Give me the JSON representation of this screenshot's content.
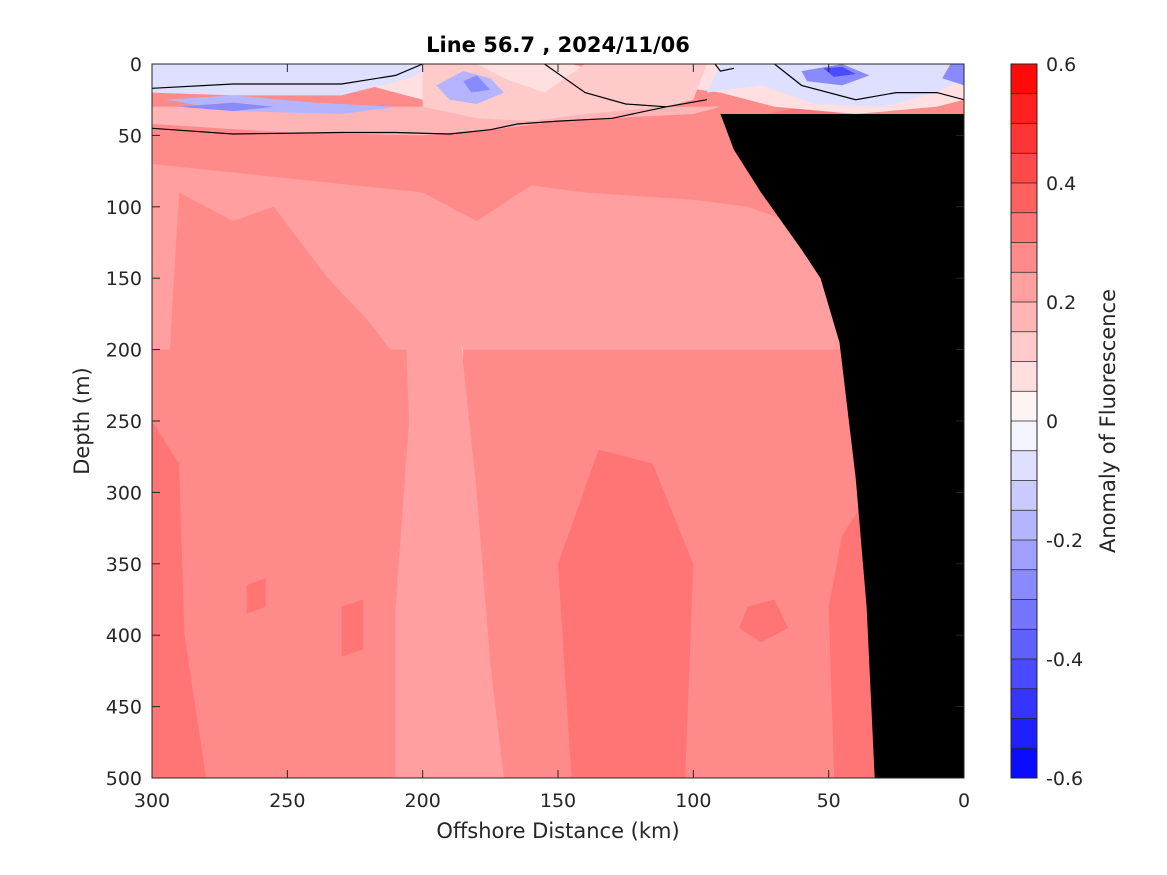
{
  "chart_data": {
    "type": "heatmap",
    "title": "Line 56.7 , 2024/11/06",
    "xlabel": "Offshore Distance (km)",
    "ylabel": "Depth (m)",
    "colorbar_label": "Anomaly of Fluorescence",
    "xlim": [
      300,
      0
    ],
    "ylim": [
      500,
      0
    ],
    "x_ticks": [
      "300",
      "250",
      "200",
      "150",
      "100",
      "50",
      "0"
    ],
    "y_ticks": [
      "0",
      "50",
      "100",
      "150",
      "200",
      "250",
      "300",
      "350",
      "400",
      "450",
      "500"
    ],
    "colorbar_range": [
      -0.6,
      0.6
    ],
    "colorbar_ticks": [
      "0.6",
      "0.4",
      "0.2",
      "0",
      "-0.2",
      "-0.4",
      "-0.6"
    ],
    "colorbar_levels": 24,
    "grid": false,
    "bathymetry_color": "#000000",
    "zero_contour_color": "#000000",
    "regions": [
      {
        "value": 0.25,
        "points": [
          [
            300,
            0
          ],
          [
            0,
            0
          ],
          [
            0,
            500
          ],
          [
            300,
            500
          ]
        ]
      },
      {
        "value": 0.225,
        "points": [
          [
            300,
            70
          ],
          [
            250,
            80
          ],
          [
            200,
            90
          ],
          [
            180,
            110
          ],
          [
            160,
            85
          ],
          [
            140,
            90
          ],
          [
            100,
            95
          ],
          [
            80,
            100
          ],
          [
            50,
            120
          ],
          [
            20,
            140
          ],
          [
            10,
            160
          ],
          [
            3,
            200
          ],
          [
            300,
            200
          ]
        ]
      },
      {
        "value": 0.25,
        "points": [
          [
            290,
            90
          ],
          [
            270,
            110
          ],
          [
            255,
            100
          ],
          [
            235,
            150
          ],
          [
            220,
            180
          ],
          [
            200,
            230
          ],
          [
            190,
            360
          ],
          [
            185,
            500
          ],
          [
            270,
            500
          ],
          [
            285,
            400
          ],
          [
            295,
            250
          ]
        ]
      },
      {
        "value": 0.15,
        "points": [
          [
            200,
            180
          ],
          [
            193,
            160
          ],
          [
            185,
            200
          ],
          [
            186,
            250
          ],
          [
            195,
            285
          ],
          [
            205,
            240
          ]
        ]
      },
      {
        "value": 0.2,
        "points": [
          [
            208,
            110
          ],
          [
            200,
            100
          ],
          [
            190,
            120
          ],
          [
            180,
            300
          ],
          [
            175,
            420
          ],
          [
            170,
            500
          ],
          [
            210,
            500
          ],
          [
            210,
            380
          ],
          [
            205,
            250
          ]
        ]
      },
      {
        "value": 0.3,
        "points": [
          [
            300,
            250
          ],
          [
            290,
            280
          ],
          [
            288,
            400
          ],
          [
            280,
            500
          ],
          [
            300,
            500
          ]
        ]
      },
      {
        "value": 0.3,
        "points": [
          [
            230,
            380
          ],
          [
            222,
            375
          ],
          [
            222,
            410
          ],
          [
            230,
            415
          ]
        ]
      },
      {
        "value": 0.3,
        "points": [
          [
            265,
            365
          ],
          [
            258,
            360
          ],
          [
            258,
            380
          ],
          [
            265,
            385
          ]
        ]
      },
      {
        "value": 0.3,
        "points": [
          [
            150,
            350
          ],
          [
            135,
            270
          ],
          [
            115,
            280
          ],
          [
            100,
            350
          ],
          [
            103,
            500
          ],
          [
            145,
            500
          ]
        ]
      },
      {
        "value": 0.3,
        "points": [
          [
            80,
            380
          ],
          [
            70,
            375
          ],
          [
            65,
            395
          ],
          [
            75,
            405
          ],
          [
            83,
            395
          ]
        ]
      },
      {
        "value": 0.3,
        "points": [
          [
            45,
            330
          ],
          [
            38,
            310
          ],
          [
            33,
            360
          ],
          [
            33,
            500
          ],
          [
            48,
            500
          ],
          [
            50,
            380
          ]
        ]
      },
      {
        "value": 0.3,
        "points": [
          [
            85,
            40
          ],
          [
            60,
            30
          ],
          [
            30,
            40
          ],
          [
            10,
            45
          ],
          [
            8,
            70
          ],
          [
            15,
            100
          ],
          [
            25,
            110
          ],
          [
            40,
            90
          ],
          [
            60,
            80
          ],
          [
            80,
            70
          ]
        ]
      },
      {
        "value": 0.35,
        "points": [
          [
            70,
            50
          ],
          [
            60,
            45
          ],
          [
            50,
            55
          ],
          [
            55,
            65
          ],
          [
            68,
            65
          ]
        ]
      },
      {
        "value": 0.3,
        "points": [
          [
            30,
            120
          ],
          [
            20,
            110
          ],
          [
            15,
            130
          ],
          [
            25,
            140
          ]
        ]
      },
      {
        "value": 0.15,
        "points": [
          [
            300,
            42
          ],
          [
            250,
            48
          ],
          [
            200,
            50
          ],
          [
            170,
            45
          ],
          [
            150,
            40
          ],
          [
            100,
            35
          ],
          [
            90,
            30
          ],
          [
            300,
            30
          ]
        ]
      },
      {
        "value": 0.05,
        "points": [
          [
            300,
            15
          ],
          [
            260,
            10
          ],
          [
            220,
            15
          ],
          [
            200,
            25
          ],
          [
            170,
            35
          ],
          [
            140,
            30
          ],
          [
            110,
            15
          ],
          [
            90,
            20
          ],
          [
            70,
            30
          ],
          [
            40,
            35
          ],
          [
            10,
            30
          ],
          [
            0,
            25
          ],
          [
            0,
            0
          ],
          [
            300,
            0
          ]
        ]
      },
      {
        "value": 0.2,
        "points": [
          [
            280,
            0
          ],
          [
            265,
            8
          ],
          [
            245,
            5
          ],
          [
            240,
            0
          ]
        ]
      },
      {
        "value": 0.2,
        "points": [
          [
            145,
            0
          ],
          [
            130,
            8
          ],
          [
            120,
            5
          ],
          [
            118,
            0
          ]
        ]
      },
      {
        "value": -0.1,
        "points": [
          [
            300,
            20
          ],
          [
            270,
            22
          ],
          [
            230,
            22
          ],
          [
            205,
            10
          ],
          [
            195,
            0
          ],
          [
            90,
            0
          ],
          [
            95,
            20
          ],
          [
            75,
            15
          ],
          [
            55,
            28
          ],
          [
            30,
            30
          ],
          [
            10,
            20
          ],
          [
            0,
            10
          ],
          [
            0,
            0
          ],
          [
            300,
            0
          ]
        ]
      },
      {
        "value": 0.1,
        "points": [
          [
            200,
            0
          ],
          [
            180,
            0
          ],
          [
            170,
            10
          ],
          [
            155,
            20
          ],
          [
            140,
            0
          ],
          [
            95,
            0
          ],
          [
            100,
            25
          ],
          [
            110,
            30
          ],
          [
            140,
            35
          ],
          [
            160,
            40
          ],
          [
            180,
            38
          ],
          [
            200,
            30
          ]
        ]
      },
      {
        "value": -0.2,
        "points": [
          [
            295,
            25
          ],
          [
            270,
            22
          ],
          [
            240,
            27
          ],
          [
            210,
            30
          ],
          [
            230,
            35
          ],
          [
            270,
            33
          ]
        ]
      },
      {
        "value": -0.2,
        "points": [
          [
            195,
            15
          ],
          [
            185,
            5
          ],
          [
            175,
            10
          ],
          [
            170,
            20
          ],
          [
            180,
            28
          ],
          [
            190,
            25
          ]
        ]
      },
      {
        "value": -0.3,
        "points": [
          [
            290,
            30
          ],
          [
            270,
            27
          ],
          [
            255,
            30
          ],
          [
            270,
            33
          ]
        ]
      },
      {
        "value": -0.3,
        "points": [
          [
            185,
            12
          ],
          [
            180,
            8
          ],
          [
            175,
            18
          ],
          [
            182,
            20
          ]
        ]
      },
      {
        "value": -0.3,
        "points": [
          [
            60,
            5
          ],
          [
            45,
            0
          ],
          [
            35,
            8
          ],
          [
            45,
            15
          ],
          [
            58,
            12
          ]
        ]
      },
      {
        "value": -0.4,
        "points": [
          [
            52,
            3
          ],
          [
            45,
            2
          ],
          [
            40,
            7
          ],
          [
            48,
            9
          ]
        ]
      },
      {
        "value": -0.3,
        "points": [
          [
            5,
            0
          ],
          [
            0,
            0
          ],
          [
            0,
            15
          ],
          [
            8,
            10
          ]
        ]
      }
    ],
    "zero_contours": [
      [
        [
          300,
          17
        ],
        [
          270,
          14
        ],
        [
          230,
          14
        ],
        [
          210,
          8
        ],
        [
          200,
          0
        ]
      ],
      [
        [
          300,
          45
        ],
        [
          270,
          49
        ],
        [
          230,
          48
        ],
        [
          210,
          48
        ],
        [
          190,
          49
        ],
        [
          175,
          46
        ],
        [
          165,
          42
        ],
        [
          150,
          40
        ],
        [
          130,
          38
        ],
        [
          110,
          30
        ],
        [
          95,
          25
        ]
      ],
      [
        [
          155,
          0
        ],
        [
          140,
          20
        ],
        [
          125,
          28
        ],
        [
          110,
          30
        ]
      ],
      [
        [
          92,
          0
        ],
        [
          90,
          5
        ],
        [
          85,
          3
        ]
      ],
      [
        [
          70,
          0
        ],
        [
          60,
          15
        ],
        [
          40,
          25
        ],
        [
          25,
          20
        ],
        [
          10,
          20
        ],
        [
          0,
          25
        ]
      ]
    ],
    "bathymetry": [
      [
        33,
        500
      ],
      [
        36,
        380
      ],
      [
        40,
        290
      ],
      [
        46,
        195
      ],
      [
        53,
        150
      ],
      [
        60,
        130
      ],
      [
        75,
        90
      ],
      [
        85,
        60
      ],
      [
        90,
        35
      ],
      [
        0,
        35
      ],
      [
        0,
        500
      ]
    ]
  }
}
